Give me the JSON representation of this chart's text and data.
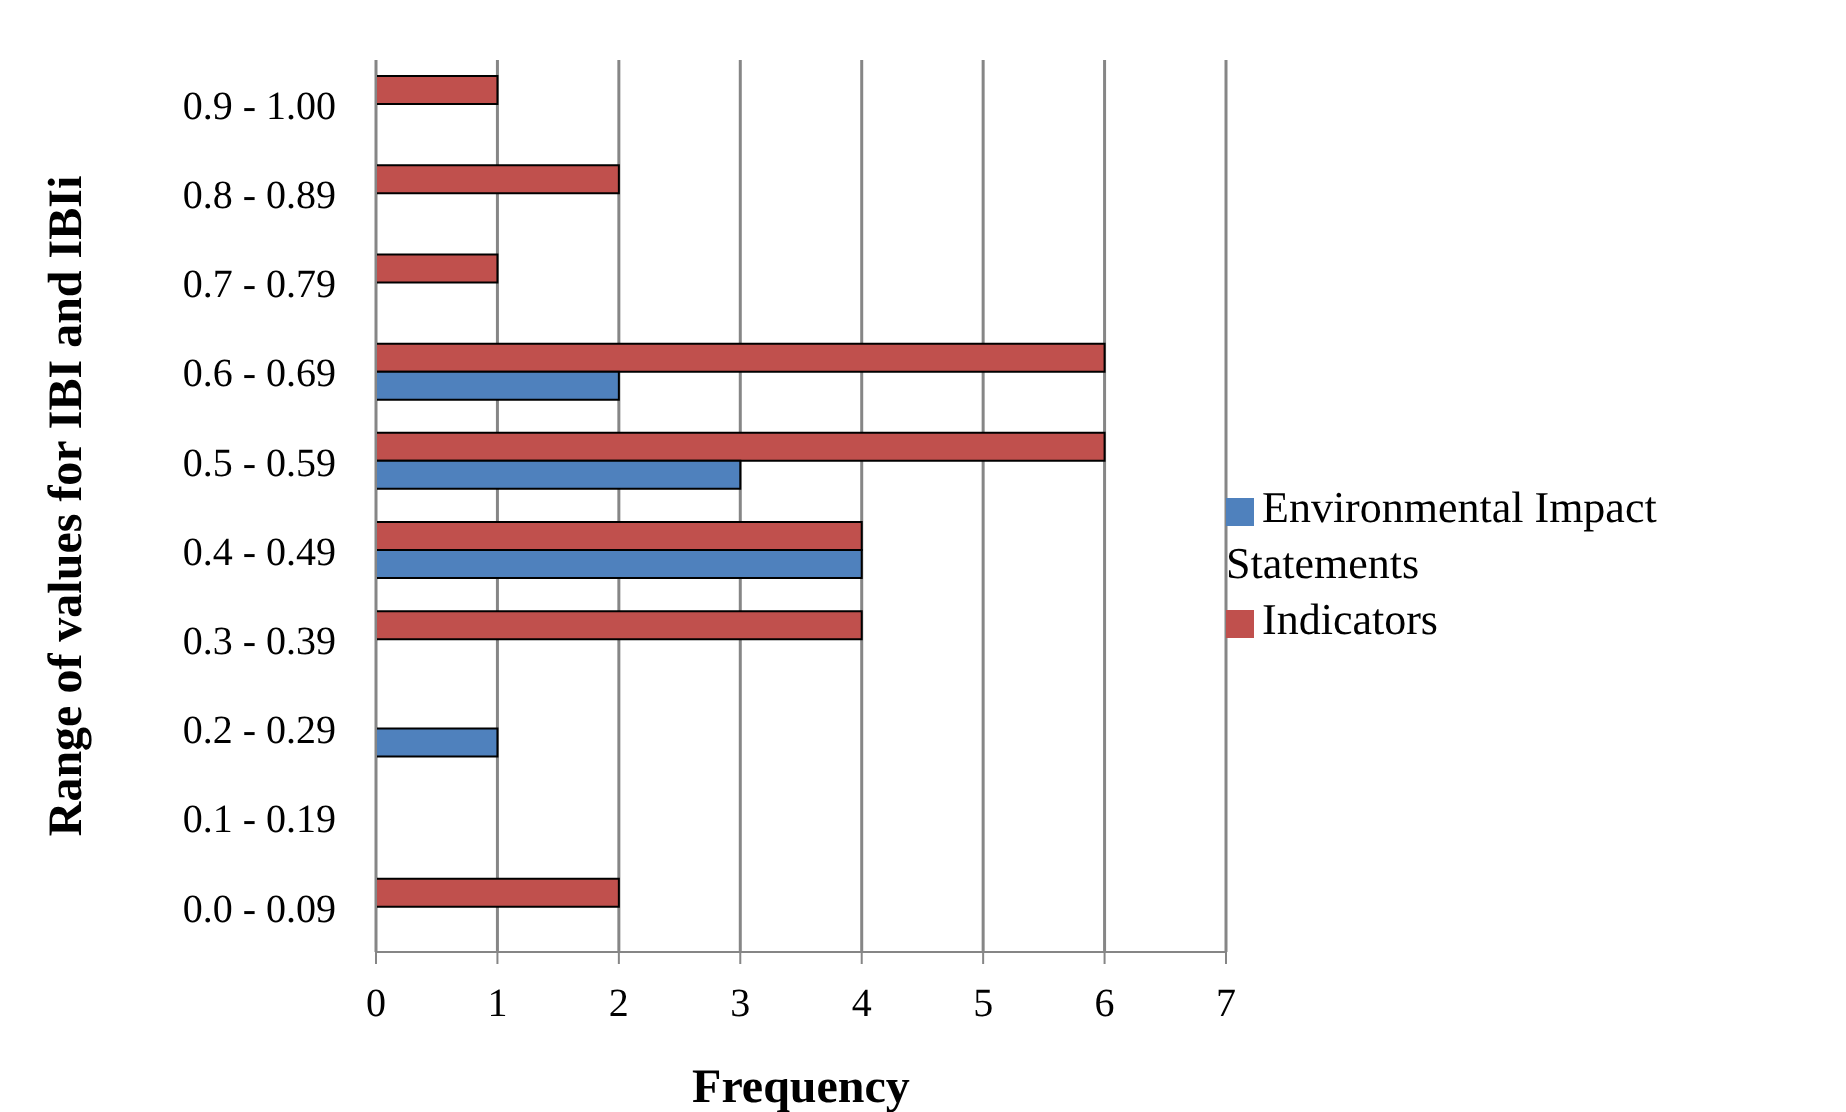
{
  "chart_data": {
    "type": "bar",
    "orientation": "horizontal",
    "xlabel": "Frequency",
    "ylabel": "Range of values for IBI and IBIi",
    "categories": [
      "0.9 - 1.00",
      "0.8 - 0.89",
      "0.7 - 0.79",
      "0.6 - 0.69",
      "0.5 - 0.59",
      "0.4 - 0.49",
      "0.3 - 0.39",
      "0.2 - 0.29",
      "0.1 - 0.19",
      "0.0 - 0.09"
    ],
    "series": [
      {
        "name": "Indicators",
        "color": "#c0504d",
        "values": [
          1,
          2,
          1,
          6,
          6,
          4,
          4,
          0,
          0,
          2
        ]
      },
      {
        "name": "Environmental Impact Statements",
        "color": "#4f81bd",
        "values": [
          0,
          0,
          0,
          2,
          3,
          4,
          0,
          1,
          0,
          0
        ]
      }
    ],
    "xlim": [
      0,
      7
    ],
    "xticks": [
      0,
      1,
      2,
      3,
      4,
      5,
      6,
      7
    ],
    "grid": "x",
    "legend": "right"
  }
}
